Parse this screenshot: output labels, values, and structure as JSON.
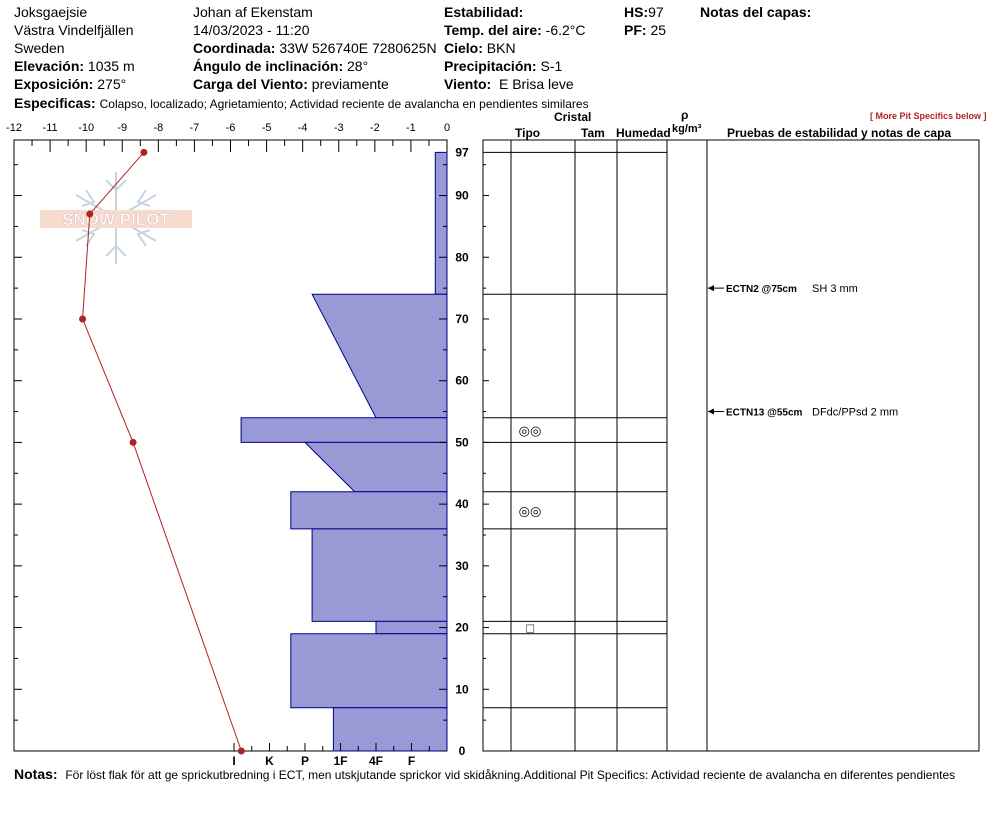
{
  "header": {
    "location": "Joksgaejsie",
    "region": "Västra Vindelfjällen",
    "country": "Sweden",
    "observer": "Johan af Ekenstam",
    "datetime": "14/03/2023 - 11:20",
    "elevation_label": "Elevación:",
    "elevation": "1035 m",
    "aspect_label": "Exposición:",
    "aspect": "275°",
    "coord_label": "Coordinada:",
    "coord": "33W 526740E 7280625N",
    "slope_label": "Ángulo de inclinación:",
    "slope": "28°",
    "wind_load_label": "Carga del Viento:",
    "wind_load": "previamente",
    "stability_label": "Estabilidad:",
    "air_temp_label": "Temp. del aire:",
    "air_temp": "-6.2°C",
    "sky_label": "Cielo:",
    "sky": "BKN",
    "precip_label": "Precipitación:",
    "precip": "S-1",
    "wind_label": "Viento:",
    "wind": "E Brisa leve",
    "hs_label": "HS:",
    "hs": "97",
    "pf_label": "PF:",
    "pf": "25",
    "layer_notes_label": "Notas del capas:",
    "specifics_label": "Especificas:",
    "specifics": "Colapso, localizado;  Agrietamiento;  Actividad reciente de avalancha en pendientes similares"
  },
  "columns": {
    "crystal": "Cristal",
    "type": "Tipo",
    "size": "Tam",
    "moisture": "Humedad",
    "rho": "ρ",
    "density_unit": "kg/m³",
    "tests": "Pruebas de estabilidad y notas de capa",
    "more": "[ More Pit Specifics below ]"
  },
  "logo_text": "SNOW PILOT",
  "footer": {
    "label": "Notas:",
    "text": "För löst flak för att ge sprickutbredning i ECT, men utskjutande sprickor vid skidåkning.Additional Pit Specifics: Actividad reciente de avalancha en diferentes pendientes"
  },
  "colors": {
    "hardness_fill": "#9999d6",
    "hardness_stroke": "#00008b",
    "temp_line": "#b22222",
    "more_link": "#b22222"
  },
  "chart_data": {
    "type": "snow_profile",
    "temp_axis": {
      "ticks": [
        "-12",
        "-11",
        "-10",
        "-9",
        "-8",
        "-7",
        "-6",
        "-5",
        "-4",
        "-3",
        "-2",
        "-1",
        "0"
      ],
      "range": [
        -12,
        0
      ]
    },
    "depth_axis": {
      "ticks": [
        "0",
        "10",
        "20",
        "30",
        "40",
        "50",
        "60",
        "70",
        "80",
        "90",
        "97"
      ],
      "range": [
        0,
        99
      ]
    },
    "hardness_axis": {
      "labels": [
        "I",
        "K",
        "P",
        "1F",
        "4F",
        "F"
      ],
      "scale": [
        6,
        5,
        4,
        3,
        2,
        1
      ]
    },
    "temperature_profile": [
      {
        "depth": 0,
        "temp": -5.7
      },
      {
        "depth": 50,
        "temp": -8.7
      },
      {
        "depth": 70,
        "temp": -10.1
      },
      {
        "depth": 87,
        "temp": -9.9
      },
      {
        "depth": 97,
        "temp": -8.4
      }
    ],
    "hardness_profile": [
      {
        "top": 97,
        "bottom": 74,
        "hardness_top": 0.33,
        "hardness_bottom": 0.33
      },
      {
        "top": 74,
        "bottom": 54,
        "hardness_top": 3.8,
        "hardness_bottom": 2.0
      },
      {
        "top": 54,
        "bottom": 50,
        "hardness_top": 5.8,
        "hardness_bottom": 5.8
      },
      {
        "top": 50,
        "bottom": 42,
        "hardness_top": 4.0,
        "hardness_bottom": 2.6
      },
      {
        "top": 42,
        "bottom": 36,
        "hardness_top": 4.4,
        "hardness_bottom": 4.4
      },
      {
        "top": 36,
        "bottom": 21,
        "hardness_top": 3.8,
        "hardness_bottom": 3.8
      },
      {
        "top": 21,
        "bottom": 19,
        "hardness_top": 2.0,
        "hardness_bottom": 2.0
      },
      {
        "top": 19,
        "bottom": 7,
        "hardness_top": 4.4,
        "hardness_bottom": 4.4
      },
      {
        "top": 7,
        "bottom": 0,
        "hardness_top": 3.2,
        "hardness_bottom": 3.2
      }
    ],
    "layer_boundaries": [
      97,
      74,
      54,
      50,
      42,
      36,
      21,
      19,
      7
    ],
    "grain_symbols": [
      {
        "depth": 52,
        "symbol": "◎◎"
      },
      {
        "depth": 39,
        "symbol": "◎◎"
      },
      {
        "depth": 20,
        "symbol": "□"
      }
    ],
    "tests": [
      {
        "depth": 75,
        "label": "ECTN2 @75cm",
        "note": "SH 3 mm"
      },
      {
        "depth": 55,
        "label": "ECTN13 @55cm",
        "note": "DFdc/PPsd 2 mm"
      }
    ]
  }
}
